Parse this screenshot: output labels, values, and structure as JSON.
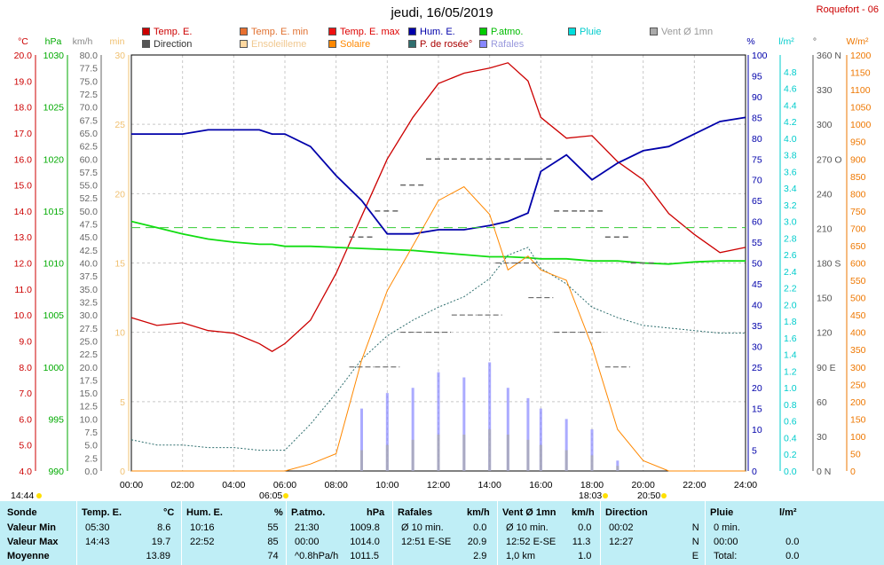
{
  "header": {
    "date": "jeudi, 16/05/2019",
    "station": "Roquefort - 06"
  },
  "legend": [
    {
      "label": "Temp. E.",
      "color": "#cc0000",
      "text_color": "#cc0000"
    },
    {
      "label": "Temp. E. min",
      "color": "#e87030",
      "text_color": "#e07030"
    },
    {
      "label": "Temp. E. max",
      "color": "#ee1111",
      "text_color": "#dd0000"
    },
    {
      "label": "Hum. E.",
      "color": "#0000aa",
      "text_color": "#0000aa"
    },
    {
      "label": "P.atmo.",
      "color": "#00cc00",
      "text_color": "#00bb00"
    },
    {
      "label": "Pluie",
      "color": "#00dddd",
      "text_color": "#00cccc"
    },
    {
      "label": "Vent Ø 1mn",
      "color": "#aaaaaa",
      "text_color": "#999999"
    },
    {
      "label": "Direction",
      "color": "#555555",
      "text_color": "#333333"
    },
    {
      "label": "Ensoleilleme",
      "color": "#ffd8a0",
      "text_color": "#f0c890"
    },
    {
      "label": "Solaire",
      "color": "#ff8800",
      "text_color": "#ff8800"
    },
    {
      "label": "P. de rosée°",
      "color": "#2f6f6f",
      "text_color": "#aa0000"
    },
    {
      "label": "Rafales",
      "color": "#8888ff",
      "text_color": "#9999dd"
    }
  ],
  "axes": {
    "left_units": [
      "°C",
      "hPa",
      "km/h",
      "min"
    ],
    "right_units": [
      "%",
      "l/m²",
      "°",
      "W/m²"
    ],
    "temp_ticks": [
      "20.0",
      "19.0",
      "18.0",
      "17.0",
      "16.0",
      "15.0",
      "14.0",
      "13.0",
      "12.0",
      "11.0",
      "10.0",
      "9.0",
      "8.0",
      "7.0",
      "6.0",
      "5.0",
      "4.0"
    ],
    "hpa_ticks": [
      "1030",
      "1025",
      "1020",
      "1015",
      "1010",
      "1005",
      "1000",
      "995",
      "990"
    ],
    "kmh_ticks": [
      "80.0",
      "77.5",
      "75.0",
      "72.5",
      "70.0",
      "67.5",
      "65.0",
      "62.5",
      "60.0",
      "57.5",
      "55.0",
      "52.5",
      "50.0",
      "47.5",
      "45.0",
      "42.5",
      "40.0",
      "37.5",
      "35.0",
      "32.5",
      "30.0",
      "27.5",
      "25.0",
      "22.5",
      "20.0",
      "17.5",
      "15.0",
      "12.5",
      "10.0",
      "7.5",
      "5.0",
      "2.5",
      "0.0"
    ],
    "min_ticks": [
      "30",
      "25",
      "20",
      "15",
      "10",
      "5",
      "0"
    ],
    "pct_ticks": [
      "100",
      "95",
      "90",
      "85",
      "80",
      "75",
      "70",
      "65",
      "60",
      "55",
      "50",
      "45",
      "40",
      "35",
      "30",
      "25",
      "20",
      "15",
      "10",
      "5",
      "0"
    ],
    "lm2_ticks": [
      "4.8",
      "4.6",
      "4.4",
      "4.2",
      "4.0",
      "3.8",
      "3.6",
      "3.4",
      "3.2",
      "3.0",
      "2.8",
      "2.6",
      "2.4",
      "2.2",
      "2.0",
      "1.8",
      "1.6",
      "1.4",
      "1.2",
      "1.0",
      "0.8",
      "0.6",
      "0.4",
      "0.2",
      "0.0"
    ],
    "deg_ticks": [
      "360 N",
      "330",
      "300",
      "270 O",
      "240",
      "210",
      "180 S",
      "150",
      "120",
      "90  E",
      "60",
      "30",
      "0   N"
    ],
    "wm2_ticks": [
      "1200",
      "1150",
      "1100",
      "1050",
      "1000",
      "950",
      "900",
      "850",
      "800",
      "750",
      "700",
      "650",
      "600",
      "550",
      "500",
      "450",
      "400",
      "350",
      "300",
      "250",
      "200",
      "150",
      "100",
      "50",
      "0"
    ],
    "x_ticks": [
      "00:00",
      "02:00",
      "04:00",
      "06:00",
      "08:00",
      "10:00",
      "12:00",
      "14:00",
      "16:00",
      "18:00",
      "20:00",
      "22:00",
      "24:00"
    ],
    "markers": [
      {
        "label": "14:44"
      },
      {
        "label": "06:05"
      },
      {
        "label": "18:03"
      },
      {
        "label": "20:50"
      }
    ]
  },
  "chart_data": {
    "type": "line",
    "x": [
      "00:00",
      "01:00",
      "02:00",
      "03:00",
      "04:00",
      "05:00",
      "05:30",
      "06:00",
      "07:00",
      "08:00",
      "09:00",
      "10:00",
      "11:00",
      "12:00",
      "13:00",
      "14:00",
      "14:43",
      "15:30",
      "16:00",
      "17:00",
      "18:00",
      "19:00",
      "20:00",
      "21:00",
      "22:00",
      "23:00",
      "24:00"
    ],
    "series": [
      {
        "name": "Temp. E.",
        "unit": "°C",
        "values": [
          9.9,
          9.6,
          9.7,
          9.4,
          9.3,
          8.9,
          8.6,
          8.9,
          9.8,
          11.6,
          13.8,
          16.0,
          17.6,
          18.9,
          19.3,
          19.5,
          19.7,
          19.0,
          17.6,
          16.8,
          16.9,
          15.9,
          15.2,
          13.9,
          13.1,
          12.4,
          12.6
        ]
      },
      {
        "name": "Hum. E.",
        "unit": "%",
        "values": [
          81,
          81,
          81,
          82,
          82,
          82,
          81,
          81,
          78,
          71,
          65,
          57,
          57,
          58,
          58,
          59,
          60,
          62,
          72,
          76,
          70,
          74,
          77,
          78,
          81,
          84,
          85
        ]
      },
      {
        "name": "P.atmo.",
        "unit": "hPa",
        "values": [
          1014.0,
          1013.4,
          1012.8,
          1012.3,
          1012.0,
          1011.8,
          1011.8,
          1011.6,
          1011.6,
          1011.5,
          1011.4,
          1011.3,
          1011.2,
          1011.0,
          1010.8,
          1010.6,
          1010.6,
          1010.5,
          1010.4,
          1010.4,
          1010.2,
          1010.2,
          1010.0,
          1009.9,
          1010.1,
          1010.2,
          1010.2
        ]
      },
      {
        "name": "P. de rosée°",
        "unit": "°C",
        "values": [
          5.2,
          5.0,
          5.0,
          4.9,
          4.9,
          4.8,
          4.8,
          4.8,
          5.8,
          7.0,
          8.3,
          9.2,
          9.8,
          10.3,
          10.7,
          11.4,
          12.3,
          12.6,
          11.8,
          11.2,
          10.3,
          9.9,
          9.6,
          9.5,
          9.4,
          9.3,
          9.3
        ]
      },
      {
        "name": "Solaire",
        "unit": "W/m²",
        "values": [
          0,
          0,
          0,
          0,
          0,
          0,
          0,
          0,
          20,
          50,
          320,
          520,
          650,
          780,
          820,
          740,
          580,
          620,
          580,
          550,
          360,
          120,
          30,
          0,
          0,
          0,
          0
        ]
      },
      {
        "name": "Rafales",
        "unit": "km/h",
        "values": [
          0,
          0,
          0,
          0,
          0,
          0,
          0,
          0,
          0,
          0,
          12,
          15,
          16,
          19,
          18,
          20.9,
          16,
          14,
          12,
          10,
          8,
          2,
          0,
          0,
          0,
          0,
          0
        ]
      },
      {
        "name": "Vent Ø 1mn",
        "unit": "km/h",
        "values": [
          0,
          0,
          0,
          0,
          0,
          0,
          0,
          0,
          0,
          0,
          4,
          5,
          6,
          7,
          7,
          8,
          7,
          6,
          5,
          4,
          3,
          1,
          0,
          0,
          0,
          0,
          0
        ]
      },
      {
        "name": "Direction",
        "unit": "°",
        "values": [
          0,
          0,
          0,
          0,
          0,
          0,
          0,
          0,
          0,
          0,
          90,
          90,
          120,
          120,
          135,
          135,
          180,
          180,
          150,
          120,
          120,
          90,
          0,
          0,
          0,
          0,
          0
        ]
      },
      {
        "name": "Temp. E. max",
        "unit": "°C",
        "values": [
          0,
          0,
          0,
          0,
          0,
          0,
          0,
          0,
          0,
          0,
          13.0,
          14.0,
          15.0,
          16.0,
          16.0,
          16.0,
          16.0,
          16.0,
          16.0,
          14.0,
          14.0,
          13.0,
          12.0,
          0,
          0,
          0,
          0
        ]
      }
    ],
    "ylim_temp": [
      4.0,
      20.0
    ],
    "ylim_hpa": [
      990,
      1030
    ],
    "ylim_kmh": [
      0,
      80
    ],
    "ylim_pct": [
      0,
      100
    ],
    "ylim_lm2": [
      0,
      5
    ],
    "ylim_wm2": [
      0,
      1200
    ],
    "reference_line": {
      "axis": "pct",
      "value": 58.5
    }
  },
  "table": {
    "columns": [
      {
        "head": "Sonde",
        "unit": "",
        "rows": [
          "Valeur Min",
          "Valeur Max",
          "Moyenne"
        ]
      },
      {
        "head": "Temp. E.",
        "unit": "°C",
        "rows": [
          [
            "05:30",
            "8.6"
          ],
          [
            "14:43",
            "19.7"
          ],
          [
            "",
            "13.89"
          ]
        ]
      },
      {
        "head": "Hum. E.",
        "unit": "%",
        "rows": [
          [
            "10:16",
            "55"
          ],
          [
            "22:52",
            "85"
          ],
          [
            "",
            "74"
          ]
        ]
      },
      {
        "head": "P.atmo.",
        "unit": "hPa",
        "rows": [
          [
            "21:30",
            "1009.8"
          ],
          [
            "00:00",
            "1014.0"
          ],
          [
            "^0.8hPa/h",
            "1011.5"
          ]
        ]
      },
      {
        "head": "Rafales",
        "unit": "km/h",
        "rows": [
          [
            "Ø 10 min.",
            "0.0"
          ],
          [
            "12:51  E-SE",
            "20.9"
          ],
          [
            "",
            "2.9"
          ]
        ]
      },
      {
        "head": "Vent Ø 1mn",
        "unit": "km/h",
        "rows": [
          [
            "Ø 10 min.",
            "0.0"
          ],
          [
            "12:52  E-SE",
            "11.3"
          ],
          [
            "1,0 km",
            "1.0"
          ]
        ]
      },
      {
        "head": "Direction",
        "unit": "",
        "rows": [
          [
            "00:02",
            "N"
          ],
          [
            "12:27",
            "N"
          ],
          [
            "",
            "E"
          ]
        ]
      },
      {
        "head": "Pluie",
        "unit": "l/m²",
        "rows": [
          [
            "0 min.",
            ""
          ],
          [
            "00:00",
            "0.0"
          ],
          [
            "Total:",
            "0.0"
          ]
        ]
      }
    ]
  }
}
